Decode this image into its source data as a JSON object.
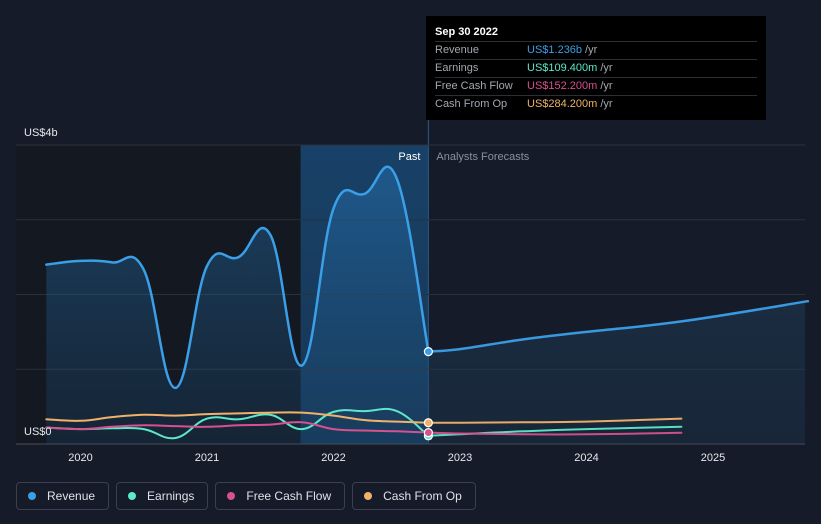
{
  "tooltip": {
    "date": "Sep 30 2022",
    "rows": [
      {
        "label": "Revenue",
        "value": "US$1.236b",
        "unit": "/yr",
        "color": "#3b9fe8"
      },
      {
        "label": "Earnings",
        "value": "US$109.400m",
        "unit": "/yr",
        "color": "#5ce8c9"
      },
      {
        "label": "Free Cash Flow",
        "value": "US$152.200m",
        "unit": "/yr",
        "color": "#d6518f"
      },
      {
        "label": "Cash From Op",
        "value": "US$284.200m",
        "unit": "/yr",
        "color": "#f0b26a"
      }
    ]
  },
  "labels": {
    "past": "Past",
    "forecast": "Analysts Forecasts"
  },
  "legend": [
    {
      "label": "Revenue",
      "color": "#3b9fe8"
    },
    {
      "label": "Earnings",
      "color": "#5ce8c9"
    },
    {
      "label": "Free Cash Flow",
      "color": "#d6518f"
    },
    {
      "label": "Cash From Op",
      "color": "#f0b26a"
    }
  ],
  "chart_data": {
    "type": "line",
    "ylim": [
      0,
      4000
    ],
    "xlim": [
      2019.6,
      2025.75
    ],
    "y_ticks": [
      {
        "value": 4000,
        "label": "US$4b"
      },
      {
        "value": 0,
        "label": "US$0"
      }
    ],
    "x_ticks": [
      {
        "value": 2020,
        "label": "2020"
      },
      {
        "value": 2021,
        "label": "2021"
      },
      {
        "value": 2022,
        "label": "2022"
      },
      {
        "value": 2023,
        "label": "2023"
      },
      {
        "value": 2024,
        "label": "2024"
      },
      {
        "value": 2025,
        "label": "2025"
      }
    ],
    "gridlines": [
      4000,
      3000,
      2000,
      1000,
      0
    ],
    "past_end": 2022.75,
    "highlight_start": 2021.74,
    "series": [
      {
        "name": "Revenue",
        "color": "#3b9fe8",
        "width": 2.5,
        "past": [
          [
            2019.73,
            2400
          ],
          [
            2020.0,
            2450
          ],
          [
            2020.25,
            2430
          ],
          [
            2020.5,
            2330
          ],
          [
            2020.75,
            750
          ],
          [
            2021.0,
            2380
          ],
          [
            2021.25,
            2500
          ],
          [
            2021.5,
            2800
          ],
          [
            2021.75,
            1050
          ],
          [
            2022.0,
            3150
          ],
          [
            2022.25,
            3350
          ],
          [
            2022.5,
            3550
          ],
          [
            2022.75,
            1236
          ]
        ],
        "forecast": [
          [
            2022.75,
            1236
          ],
          [
            2023.0,
            1270
          ],
          [
            2023.5,
            1400
          ],
          [
            2024.0,
            1500
          ],
          [
            2024.75,
            1640
          ],
          [
            2025.75,
            1910
          ]
        ]
      },
      {
        "name": "Earnings",
        "color": "#5ce8c9",
        "width": 2,
        "past": [
          [
            2019.73,
            220
          ],
          [
            2020.0,
            200
          ],
          [
            2020.25,
            210
          ],
          [
            2020.5,
            200
          ],
          [
            2020.75,
            80
          ],
          [
            2021.0,
            340
          ],
          [
            2021.25,
            330
          ],
          [
            2021.5,
            390
          ],
          [
            2021.75,
            200
          ],
          [
            2022.0,
            430
          ],
          [
            2022.25,
            440
          ],
          [
            2022.5,
            440
          ],
          [
            2022.75,
            109.4
          ]
        ],
        "forecast": [
          [
            2022.75,
            109.4
          ],
          [
            2023.0,
            130
          ],
          [
            2023.5,
            170
          ],
          [
            2024.0,
            200
          ],
          [
            2024.75,
            230
          ]
        ]
      },
      {
        "name": "Free Cash Flow",
        "color": "#d6518f",
        "width": 2,
        "past": [
          [
            2019.73,
            220
          ],
          [
            2020.0,
            200
          ],
          [
            2020.25,
            230
          ],
          [
            2020.5,
            250
          ],
          [
            2020.75,
            240
          ],
          [
            2021.0,
            230
          ],
          [
            2021.25,
            250
          ],
          [
            2021.5,
            260
          ],
          [
            2021.75,
            290
          ],
          [
            2022.0,
            200
          ],
          [
            2022.25,
            180
          ],
          [
            2022.5,
            170
          ],
          [
            2022.75,
            152.2
          ]
        ],
        "forecast": [
          [
            2022.75,
            152.2
          ],
          [
            2023.0,
            140
          ],
          [
            2023.5,
            130
          ],
          [
            2024.0,
            130
          ],
          [
            2024.75,
            150
          ]
        ]
      },
      {
        "name": "Cash From Op",
        "color": "#f0b26a",
        "width": 2,
        "past": [
          [
            2019.73,
            330
          ],
          [
            2020.0,
            310
          ],
          [
            2020.25,
            360
          ],
          [
            2020.5,
            390
          ],
          [
            2020.75,
            380
          ],
          [
            2021.0,
            400
          ],
          [
            2021.25,
            410
          ],
          [
            2021.5,
            420
          ],
          [
            2021.75,
            420
          ],
          [
            2022.0,
            380
          ],
          [
            2022.25,
            320
          ],
          [
            2022.5,
            300
          ],
          [
            2022.75,
            284.2
          ]
        ],
        "forecast": [
          [
            2022.75,
            284.2
          ],
          [
            2023.0,
            285
          ],
          [
            2023.5,
            290
          ],
          [
            2024.0,
            300
          ],
          [
            2024.75,
            340
          ]
        ]
      }
    ]
  }
}
